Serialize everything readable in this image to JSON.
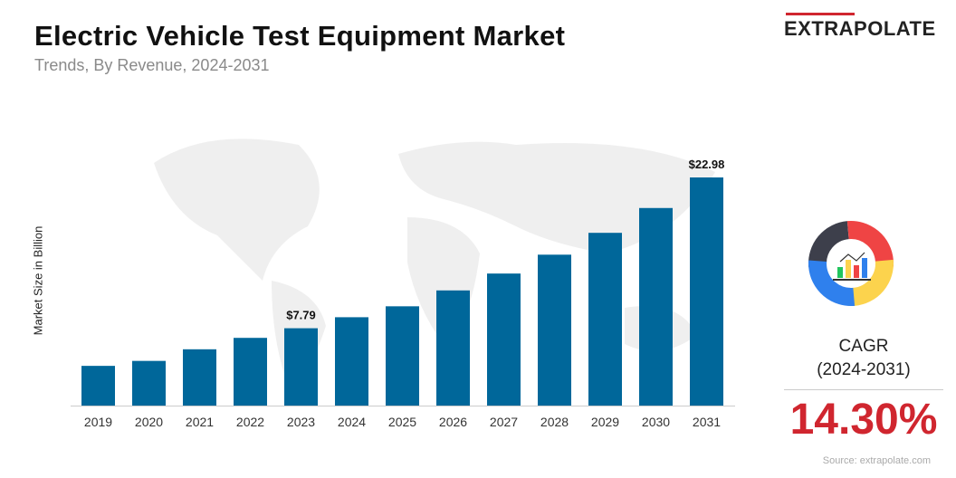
{
  "header": {
    "title": "Electric Vehicle Test Equipment Market",
    "subtitle": "Trends, By Revenue, 2024-2031"
  },
  "logo": {
    "text": "EXTRAPOLATE",
    "accent": "#d0262f"
  },
  "cagr": {
    "label": "CAGR",
    "period": "(2024-2031)",
    "value": "14.30%",
    "icon": "donut-chart-icon"
  },
  "source": "Source: extrapolate.com",
  "chart_data": {
    "type": "bar",
    "ylabel": "Market Size in Billion",
    "xlabel": "",
    "categories": [
      "2019",
      "2020",
      "2021",
      "2022",
      "2023",
      "2024",
      "2025",
      "2026",
      "2027",
      "2028",
      "2029",
      "2030",
      "2031"
    ],
    "values": [
      4.0,
      4.5,
      5.67,
      6.82,
      7.79,
      8.9,
      10.0,
      11.6,
      13.3,
      15.2,
      17.4,
      19.9,
      22.98
    ],
    "data_labels": {
      "2023": "$7.79",
      "2031": "$22.98"
    },
    "bar_color": "#00679a",
    "grid": false
  }
}
